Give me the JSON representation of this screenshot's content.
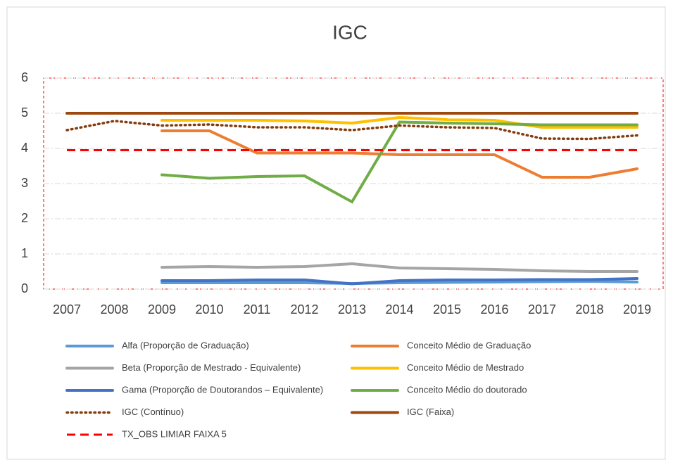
{
  "chart_data": {
    "type": "line",
    "title": "IGC",
    "categories": [
      "2007",
      "2008",
      "2009",
      "2010",
      "2011",
      "2012",
      "2013",
      "2014",
      "2015",
      "2016",
      "2017",
      "2018",
      "2019"
    ],
    "ylim": [
      0,
      6
    ],
    "yticks": [
      0,
      1,
      2,
      3,
      4,
      5,
      6
    ],
    "grid": true,
    "legend": "bottom",
    "series": [
      {
        "name": "Alfa (Proporção de Graduação)",
        "color": "#5b9bd5",
        "style": "solid",
        "values": [
          null,
          null,
          0.18,
          0.18,
          0.18,
          0.18,
          0.16,
          0.18,
          0.19,
          0.2,
          0.21,
          0.22,
          0.2
        ]
      },
      {
        "name": "Conceito Médio de Graduação",
        "color": "#ed7d31",
        "style": "solid",
        "values": [
          null,
          null,
          4.5,
          4.5,
          3.87,
          3.87,
          3.87,
          3.82,
          3.82,
          3.82,
          3.18,
          3.18,
          3.42
        ]
      },
      {
        "name": "Beta (Proporção de Mestrado - Equivalente)",
        "color": "#a5a5a5",
        "style": "solid",
        "values": [
          null,
          null,
          0.62,
          0.64,
          0.62,
          0.64,
          0.72,
          0.6,
          0.58,
          0.56,
          0.52,
          0.5,
          0.5
        ]
      },
      {
        "name": "Conceito Médio de Mestrado",
        "color": "#ffc000",
        "style": "solid",
        "values": [
          null,
          null,
          4.8,
          4.8,
          4.8,
          4.78,
          4.72,
          4.88,
          4.82,
          4.8,
          4.6,
          4.6,
          4.6
        ]
      },
      {
        "name": "Gama (Proporção de Doutorandos – Equivalente)",
        "color": "#4472c4",
        "style": "solid",
        "values": [
          null,
          null,
          0.24,
          0.24,
          0.26,
          0.26,
          0.15,
          0.24,
          0.26,
          0.26,
          0.27,
          0.27,
          0.3
        ]
      },
      {
        "name": "Conceito Médio do doutorado",
        "color": "#70ad47",
        "style": "solid",
        "values": [
          null,
          null,
          3.25,
          3.15,
          3.2,
          3.22,
          2.48,
          4.75,
          4.72,
          4.7,
          4.67,
          4.67,
          4.67
        ]
      },
      {
        "name": "IGC (Contínuo)",
        "color": "#843c0c",
        "style": "dotted",
        "values": [
          4.52,
          4.78,
          4.65,
          4.68,
          4.6,
          4.6,
          4.52,
          4.65,
          4.6,
          4.58,
          4.28,
          4.27,
          4.37
        ]
      },
      {
        "name": "IGC (Faixa)",
        "color": "#9e480e",
        "style": "solid",
        "values": [
          5,
          5,
          5,
          5,
          5,
          5,
          5,
          5,
          5,
          5,
          5,
          5,
          5
        ]
      },
      {
        "name": "TX_OBS LIMIAR FAIXA 5",
        "color": "#ff0000",
        "style": "dashed",
        "values": [
          3.95,
          3.95,
          3.95,
          3.95,
          3.95,
          3.95,
          3.95,
          3.95,
          3.95,
          3.95,
          3.95,
          3.95,
          3.95
        ]
      }
    ]
  }
}
